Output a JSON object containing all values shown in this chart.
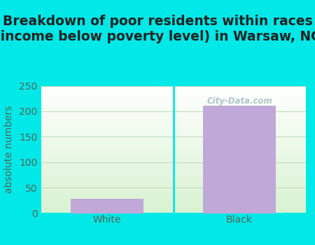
{
  "categories": [
    "White",
    "Black"
  ],
  "values": [
    28,
    211
  ],
  "bar_color": "#c0a8d8",
  "title": "Breakdown of poor residents within races\n(income below poverty level) in Warsaw, NC",
  "ylabel": "absolute numbers",
  "ylim": [
    0,
    250
  ],
  "yticks": [
    0,
    50,
    100,
    150,
    200,
    250
  ],
  "background_outer": "#00e8e8",
  "background_inner_top": "#ffffff",
  "background_inner_bottom": "#d8f0d0",
  "grid_color": "#c0ddb8",
  "title_fontsize": 13.5,
  "label_fontsize": 10,
  "tick_fontsize": 10,
  "tick_color": "#556655",
  "title_color": "#222222",
  "watermark": "City-Data.com",
  "bar_width": 0.55,
  "figsize": [
    4.5,
    3.5
  ],
  "dpi": 100
}
